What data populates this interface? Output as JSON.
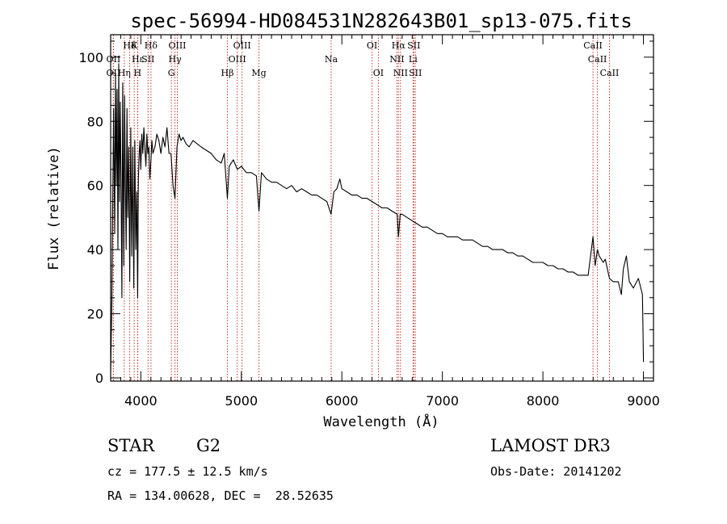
{
  "chart_data": {
    "type": "line",
    "title": "spec-56994-HD084531N282643B01_sp13-075.fits",
    "xlabel": "Wavelength (Å)",
    "ylabel": "Flux (relative)",
    "xlim": [
      3700,
      9100
    ],
    "ylim": [
      -1,
      107
    ],
    "xticks": [
      4000,
      5000,
      6000,
      7000,
      8000,
      9000
    ],
    "yticks": [
      0,
      20,
      40,
      60,
      80,
      100
    ],
    "series": [
      {
        "name": "spectrum",
        "x": [
          3700,
          3712,
          3722,
          3730,
          3740,
          3748,
          3756,
          3764,
          3772,
          3780,
          3788,
          3796,
          3804,
          3812,
          3820,
          3830,
          3838,
          3846,
          3854,
          3862,
          3870,
          3880,
          3890,
          3900,
          3910,
          3920,
          3930,
          3940,
          3950,
          3960,
          3968,
          3976,
          3984,
          3992,
          4000,
          4010,
          4020,
          4030,
          4040,
          4050,
          4060,
          4070,
          4080,
          4090,
          4101,
          4110,
          4120,
          4140,
          4160,
          4180,
          4200,
          4220,
          4240,
          4260,
          4280,
          4300,
          4320,
          4340,
          4360,
          4380,
          4400,
          4420,
          4450,
          4480,
          4520,
          4560,
          4600,
          4650,
          4700,
          4750,
          4800,
          4830,
          4861,
          4880,
          4920,
          4960,
          5000,
          5050,
          5100,
          5150,
          5175,
          5200,
          5250,
          5300,
          5350,
          5400,
          5450,
          5500,
          5550,
          5600,
          5650,
          5700,
          5750,
          5800,
          5850,
          5893,
          5920,
          5950,
          5980,
          6000,
          6050,
          6100,
          6150,
          6200,
          6250,
          6300,
          6350,
          6400,
          6450,
          6500,
          6550,
          6563,
          6580,
          6600,
          6650,
          6700,
          6750,
          6800,
          6850,
          6900,
          6950,
          7000,
          7050,
          7100,
          7150,
          7200,
          7250,
          7300,
          7350,
          7400,
          7450,
          7500,
          7550,
          7600,
          7650,
          7700,
          7750,
          7800,
          7850,
          7900,
          7950,
          8000,
          8050,
          8100,
          8150,
          8200,
          8250,
          8300,
          8350,
          8400,
          8450,
          8498,
          8520,
          8542,
          8560,
          8600,
          8620,
          8662,
          8700,
          8750,
          8780,
          8800,
          8830,
          8860,
          8900,
          8950,
          8990,
          9000
        ],
        "y": [
          2,
          24,
          58,
          84,
          45,
          95,
          60,
          90,
          40,
          98,
          55,
          86,
          60,
          25,
          92,
          35,
          88,
          60,
          40,
          84,
          50,
          72,
          30,
          78,
          38,
          72,
          28,
          74,
          40,
          58,
          25,
          62,
          70,
          74,
          65,
          76,
          70,
          78,
          72,
          66,
          76,
          70,
          72,
          62,
          68,
          74,
          70,
          72,
          76,
          74,
          70,
          75,
          72,
          78,
          70,
          70,
          60,
          56,
          72,
          76,
          74,
          75,
          73,
          72,
          74,
          73,
          72,
          71,
          70,
          68,
          67,
          70,
          56,
          66,
          68,
          65,
          66,
          64,
          64,
          63,
          52,
          64,
          62,
          61,
          61,
          60,
          59,
          60,
          58,
          59,
          58,
          57,
          57,
          56,
          55,
          51,
          58,
          59,
          62,
          59,
          58,
          57,
          57,
          56,
          56,
          55,
          54,
          53,
          53,
          52,
          51,
          44,
          51,
          51,
          50,
          49,
          48,
          47,
          47,
          46,
          45,
          45,
          44,
          44,
          44,
          43,
          43,
          43,
          42,
          41,
          41,
          40,
          40,
          40,
          39,
          39,
          38,
          38,
          37,
          36,
          36,
          36,
          35,
          35,
          34,
          34,
          33,
          33,
          32,
          32,
          32,
          44,
          35,
          40,
          38,
          36,
          37,
          31,
          30,
          30,
          26,
          34,
          38,
          30,
          28,
          31,
          26,
          5
        ]
      }
    ],
    "line_markers": [
      {
        "label": "Hδ",
        "x": 3889,
        "row": 0
      },
      {
        "label": "K",
        "x": 3934,
        "row": 0
      },
      {
        "label": "Hδ",
        "x": 4101,
        "row": 0
      },
      {
        "label": "OIII",
        "x": 4363,
        "row": 0
      },
      {
        "label": "OIII",
        "x": 5007,
        "row": 0
      },
      {
        "label": "OI",
        "x": 6300,
        "row": 0
      },
      {
        "label": "Hα",
        "x": 6563,
        "row": 0
      },
      {
        "label": "SII",
        "x": 6716,
        "row": 0
      },
      {
        "label": "CaII",
        "x": 8498,
        "row": 0
      },
      {
        "label": "OII",
        "x": 3727,
        "row": 1
      },
      {
        "label": "Hε",
        "x": 3970,
        "row": 1
      },
      {
        "label": "SII",
        "x": 4072,
        "row": 1
      },
      {
        "label": "Hγ",
        "x": 4340,
        "row": 1
      },
      {
        "label": "OIII",
        "x": 4959,
        "row": 1
      },
      {
        "label": "Na",
        "x": 5893,
        "row": 1
      },
      {
        "label": "NII",
        "x": 6548,
        "row": 1
      },
      {
        "label": "Li",
        "x": 6708,
        "row": 1
      },
      {
        "label": "CaII",
        "x": 8542,
        "row": 1
      },
      {
        "label": "OII",
        "x": 3727,
        "row": 2
      },
      {
        "label": "Hη",
        "x": 3835,
        "row": 2
      },
      {
        "label": "H",
        "x": 3968,
        "row": 2
      },
      {
        "label": "G",
        "x": 4304,
        "row": 2
      },
      {
        "label": "Hβ",
        "x": 4861,
        "row": 2
      },
      {
        "label": "Mg",
        "x": 5175,
        "row": 2
      },
      {
        "label": "OI",
        "x": 6363,
        "row": 2
      },
      {
        "label": "NII",
        "x": 6583,
        "row": 2
      },
      {
        "label": "SII",
        "x": 6731,
        "row": 2
      },
      {
        "label": "CaII",
        "x": 8662,
        "row": 2
      }
    ],
    "marker_color": "#c0392b"
  },
  "info": {
    "object_class": "STAR",
    "subclass": "G2",
    "survey": "LAMOST DR3",
    "redshift": "cz = 177.5 ± 12.5 km/s",
    "obs_date": "Obs-Date: 20141202",
    "coords": "RA = 134.00628, DEC =  28.52635"
  }
}
